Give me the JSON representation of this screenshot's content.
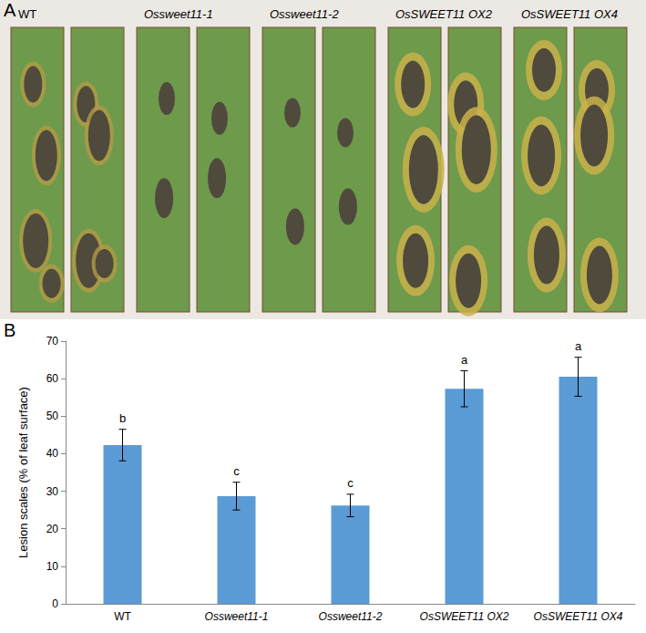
{
  "panel_labels": [
    "A",
    "B"
  ],
  "panel_a": {
    "samples": [
      "WT",
      "Ossweet11-1",
      "Ossweet11-2",
      "OsSWEET11 OX2",
      "OsSWEET11 OX4"
    ]
  },
  "chart_data": {
    "type": "bar",
    "y_label": "Lesion scales (% of leaf surface)",
    "categories": [
      "WT",
      "Ossweet11-1",
      "Ossweet11-2",
      "OsSWEET11 OX2",
      "OsSWEET11 OX4"
    ],
    "values": [
      42.3,
      28.7,
      26.2,
      57.3,
      60.5
    ],
    "errors": [
      4.2,
      3.7,
      3.0,
      4.8,
      5.2
    ],
    "letters": [
      "b",
      "c",
      "c",
      "a",
      "a"
    ],
    "color": "#5b9bd5",
    "ylim": [
      0,
      70
    ],
    "yticks": [
      0,
      10,
      20,
      30,
      40,
      50,
      60,
      70
    ],
    "grid": false
  }
}
